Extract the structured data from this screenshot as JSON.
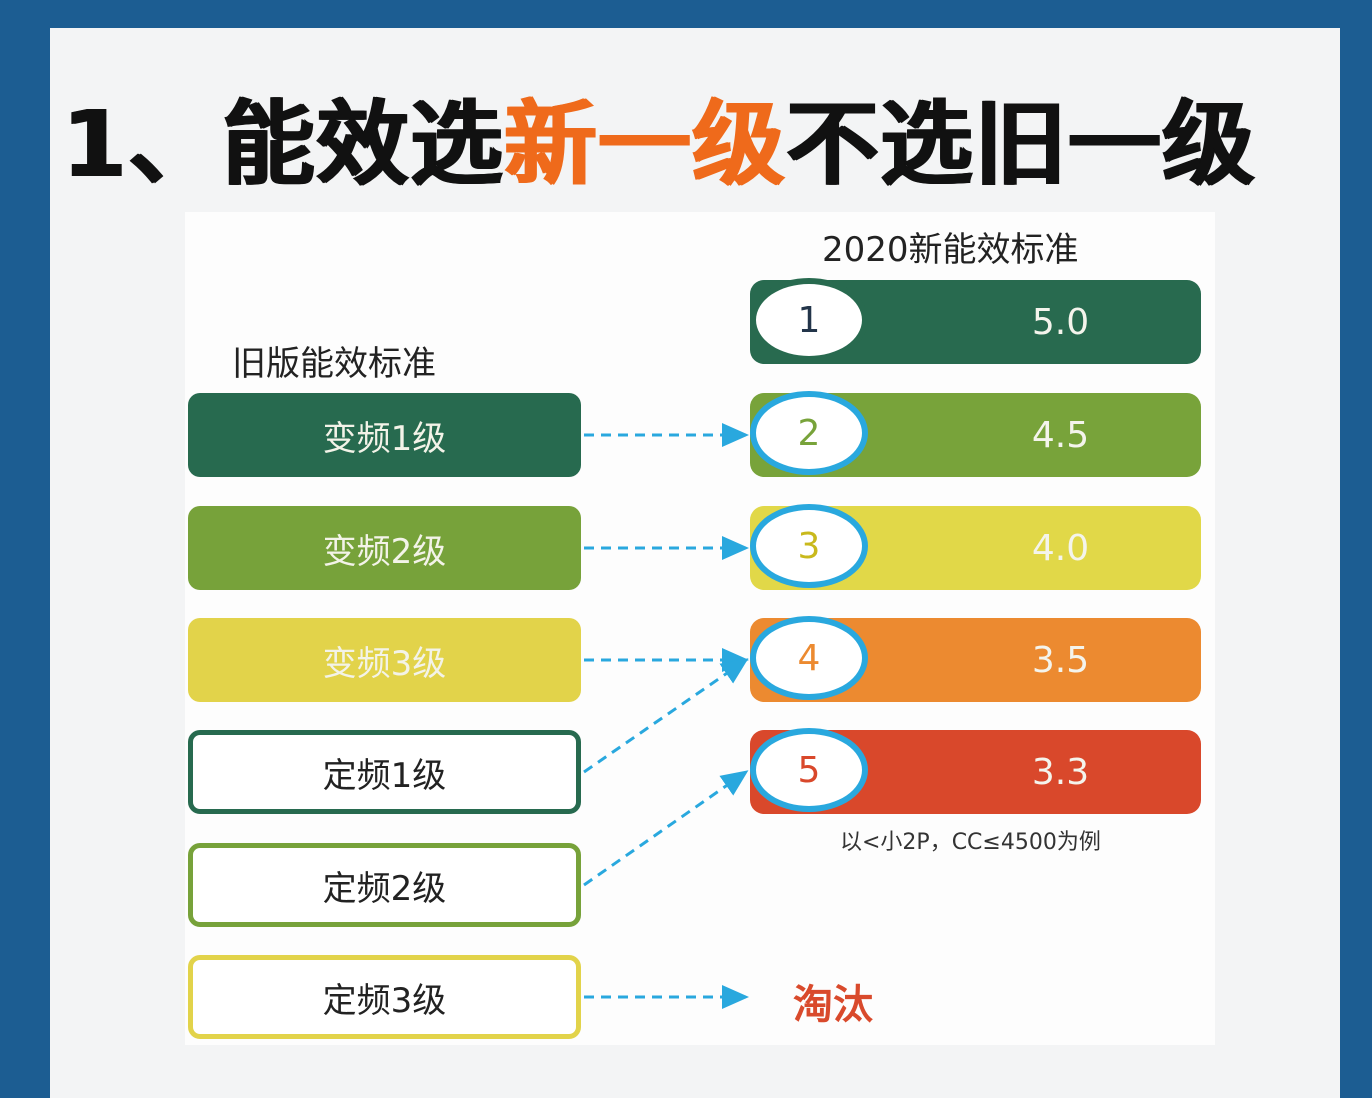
{
  "title": {
    "prefix": "1、能效选",
    "highlight": "新一级",
    "suffix": "不选旧一级"
  },
  "new_standard": {
    "heading": "2020新能效标准",
    "levels": [
      {
        "level": "1",
        "value": "5.0",
        "color": "#286a4f"
      },
      {
        "level": "2",
        "value": "4.5",
        "color": "#78a33a"
      },
      {
        "level": "3",
        "value": "4.0",
        "color": "#e1d848"
      },
      {
        "level": "4",
        "value": "3.5",
        "color": "#ec8a30"
      },
      {
        "level": "5",
        "value": "3.3",
        "color": "#d9482b"
      }
    ],
    "note": "以<小2P，CC≤4500为例"
  },
  "old_standard": {
    "heading": "旧版能效标准",
    "items": [
      {
        "label": "变频1级",
        "color": "#276a4f",
        "style": "filled",
        "maps_to": "2"
      },
      {
        "label": "变频2级",
        "color": "#77a23a",
        "style": "filled",
        "maps_to": "3"
      },
      {
        "label": "变频3级",
        "color": "#e2d34a",
        "style": "filled",
        "maps_to": "4"
      },
      {
        "label": "定频1级",
        "color": "#276a4f",
        "style": "outline",
        "maps_to": "4"
      },
      {
        "label": "定频2级",
        "color": "#77a23a",
        "style": "outline",
        "maps_to": "5"
      },
      {
        "label": "定频3级",
        "color": "#e2d34a",
        "style": "outline",
        "maps_to": "淘汰"
      }
    ]
  },
  "eliminated_label": "淘汰",
  "arrow_color": "#29a8de"
}
